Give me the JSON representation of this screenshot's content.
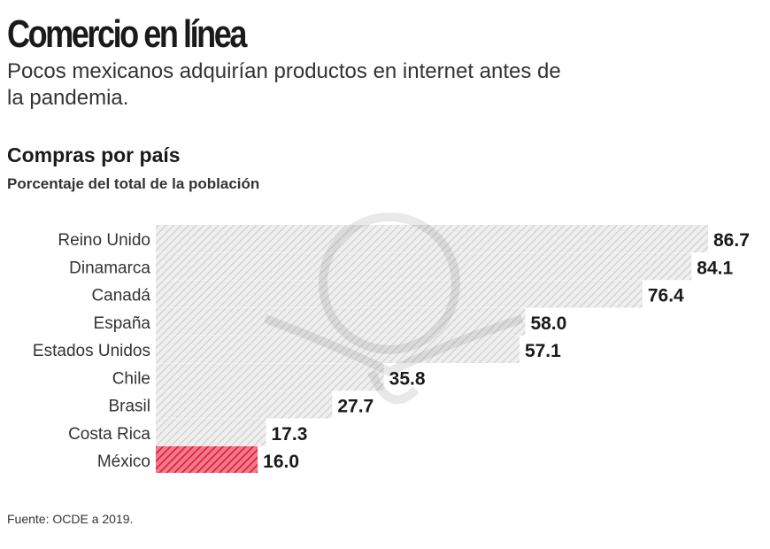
{
  "header": {
    "title": "Comercio en línea",
    "subtitle": "Pocos mexicanos adquirían productos en internet antes de la pandemia."
  },
  "chart_data": {
    "type": "bar",
    "orientation": "horizontal",
    "title": "Compras por país",
    "subtitle": "Porcentaje del total de la población",
    "categories": [
      "Reino Unido",
      "Dinamarca",
      "Canadá",
      "España",
      "Estados Unidos",
      "Chile",
      "Brasil",
      "Costa Rica",
      "México"
    ],
    "values": [
      86.7,
      84.1,
      76.4,
      58.0,
      57.1,
      35.8,
      27.7,
      17.3,
      16.0
    ],
    "value_labels": [
      "86.7",
      "84.1",
      "76.4",
      "58.0",
      "57.1",
      "35.8",
      "27.7",
      "17.3",
      "16.0"
    ],
    "highlight": "México",
    "colors": {
      "default": "#d9d9d9",
      "highlight": "#e0223f"
    },
    "pattern": "diagonal-hatch",
    "grid": false,
    "xlim": [
      0,
      86.7
    ]
  },
  "footer": {
    "source": "Fuente: OCDE a 2019."
  }
}
